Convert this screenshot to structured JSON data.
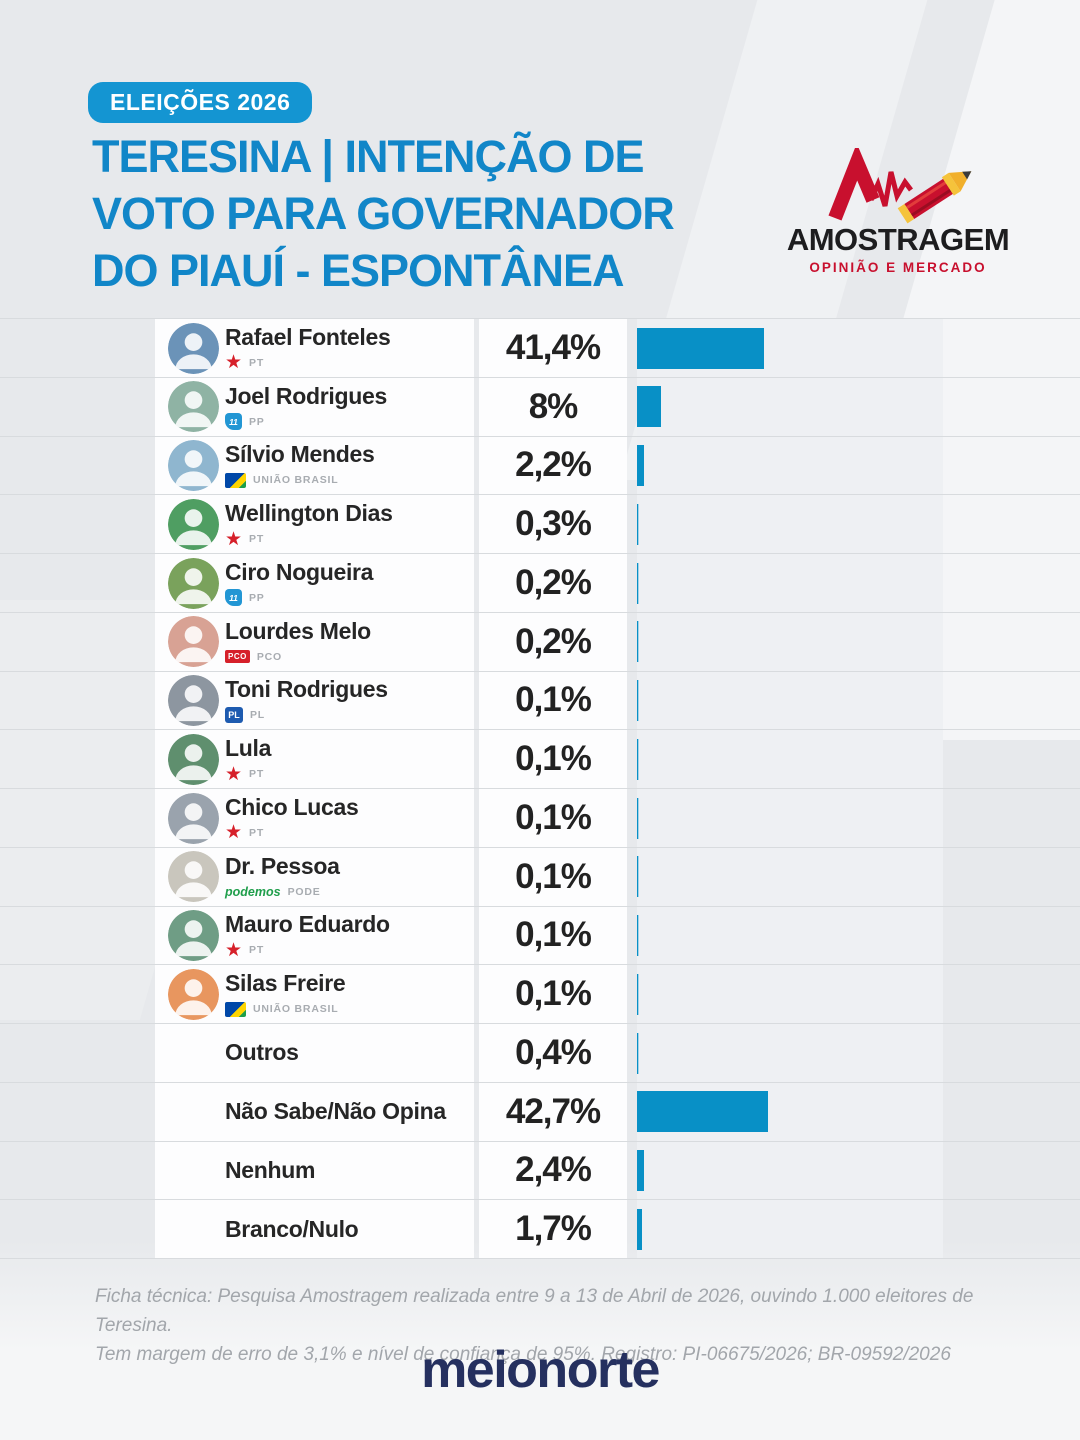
{
  "header": {
    "badge": "ELEIÇÕES 2026",
    "title": {
      "line1": "TERESINA | INTENÇÃO DE",
      "line2": "VOTO PARA GOVERNADOR",
      "line3": "DO PIAUÍ - ESPONTÂNEA"
    },
    "agency_logo": {
      "name": "AMOSTRAGEM",
      "tagline": "OPINIÃO E MERCADO",
      "icon": "pencil-pulse-icon"
    }
  },
  "table": {
    "rows": [
      {
        "name": "Rafael Fonteles",
        "party_label": "PT",
        "party_logo": "pt",
        "value": 41.4,
        "value_label": "41,4%",
        "has_photo": true,
        "avatar_color": "#6b93b8"
      },
      {
        "name": "Joel Rodrigues",
        "party_label": "PP",
        "party_logo": "pp",
        "value": 8,
        "value_label": "8%",
        "has_photo": true,
        "avatar_color": "#8fb3a4"
      },
      {
        "name": "Sílvio Mendes",
        "party_label": "UNIÃO BRASIL",
        "party_logo": "uniao",
        "value": 2.2,
        "value_label": "2,2%",
        "has_photo": true,
        "avatar_color": "#8fb6cf"
      },
      {
        "name": "Wellington Dias",
        "party_label": "PT",
        "party_logo": "pt",
        "value": 0.3,
        "value_label": "0,3%",
        "has_photo": true,
        "avatar_color": "#4f9e62"
      },
      {
        "name": "Ciro Nogueira",
        "party_label": "PP",
        "party_logo": "pp",
        "value": 0.2,
        "value_label": "0,2%",
        "has_photo": true,
        "avatar_color": "#7aa25c"
      },
      {
        "name": "Lourdes Melo",
        "party_label": "PCO",
        "party_logo": "pco",
        "value": 0.2,
        "value_label": "0,2%",
        "has_photo": true,
        "avatar_color": "#d8a294"
      },
      {
        "name": "Toni Rodrigues",
        "party_label": "PL",
        "party_logo": "pl",
        "value": 0.1,
        "value_label": "0,1%",
        "has_photo": true,
        "avatar_color": "#8d96a0"
      },
      {
        "name": "Lula",
        "party_label": "PT",
        "party_logo": "pt",
        "value": 0.1,
        "value_label": "0,1%",
        "has_photo": true,
        "avatar_color": "#5f8f6e"
      },
      {
        "name": "Chico Lucas",
        "party_label": "PT",
        "party_logo": "pt",
        "value": 0.1,
        "value_label": "0,1%",
        "has_photo": true,
        "avatar_color": "#9aa3ad"
      },
      {
        "name": "Dr. Pessoa",
        "party_label": "PODE",
        "party_logo": "podemos",
        "value": 0.1,
        "value_label": "0,1%",
        "has_photo": true,
        "avatar_color": "#c9c6bd"
      },
      {
        "name": "Mauro Eduardo",
        "party_label": "PT",
        "party_logo": "pt",
        "value": 0.1,
        "value_label": "0,1%",
        "has_photo": true,
        "avatar_color": "#6f9d85"
      },
      {
        "name": "Silas Freire",
        "party_label": "UNIÃO BRASIL",
        "party_logo": "uniao",
        "value": 0.1,
        "value_label": "0,1%",
        "has_photo": true,
        "avatar_color": "#e8965f"
      },
      {
        "name": "Outros",
        "party_label": null,
        "party_logo": null,
        "value": 0.4,
        "value_label": "0,4%",
        "has_photo": false,
        "avatar_color": null
      },
      {
        "name": "Não Sabe/Não Opina",
        "party_label": null,
        "party_logo": null,
        "value": 42.7,
        "value_label": "42,7%",
        "has_photo": false,
        "avatar_color": null
      },
      {
        "name": "Nenhum",
        "party_label": null,
        "party_logo": null,
        "value": 2.4,
        "value_label": "2,4%",
        "has_photo": false,
        "avatar_color": null
      },
      {
        "name": "Branco/Nulo",
        "party_label": null,
        "party_logo": null,
        "value": 1.7,
        "value_label": "1,7%",
        "has_photo": false,
        "avatar_color": null
      }
    ]
  },
  "chart_data": {
    "type": "bar",
    "orientation": "horizontal",
    "title": "TERESINA | INTENÇÃO DE VOTO PARA GOVERNADOR DO PIAUÍ - ESPONTÂNEA",
    "categories": [
      "Rafael Fonteles",
      "Joel Rodrigues",
      "Sílvio Mendes",
      "Wellington Dias",
      "Ciro Nogueira",
      "Lourdes Melo",
      "Toni Rodrigues",
      "Lula",
      "Chico Lucas",
      "Dr. Pessoa",
      "Mauro Eduardo",
      "Silas Freire",
      "Outros",
      "Não Sabe/Não Opina",
      "Nenhum",
      "Branco/Nulo"
    ],
    "values": [
      41.4,
      8,
      2.2,
      0.3,
      0.2,
      0.2,
      0.1,
      0.1,
      0.1,
      0.1,
      0.1,
      0.1,
      0.4,
      42.7,
      2.4,
      1.7
    ],
    "value_labels": [
      "41,4%",
      "8%",
      "2,2%",
      "0,3%",
      "0,2%",
      "0,2%",
      "0,1%",
      "0,1%",
      "0,1%",
      "0,1%",
      "0,1%",
      "0,1%",
      "0,4%",
      "42,7%",
      "2,4%",
      "1,7%"
    ],
    "parties": [
      "PT",
      "PP",
      "UNIÃO BRASIL",
      "PT",
      "PP",
      "PCO",
      "PL",
      "PT",
      "PT",
      "PODE",
      "PT",
      "UNIÃO BRASIL",
      null,
      null,
      null,
      null
    ],
    "xlabel": "",
    "ylabel": "",
    "xlim": [
      0,
      100
    ],
    "grid": false,
    "legend": false,
    "bar_color": "#0890c6"
  },
  "footer": {
    "line1": "Ficha técnica: Pesquisa Amostragem realizada entre 9 a 13 de Abril de 2026, ouvindo 1.000 eleitores de Teresina.",
    "line2": "Tem margem de erro de 3,1% e nível de confiança de 95%. Registro: PI-06675/2026; BR-09592/2026"
  },
  "brand": {
    "name": "meionorte"
  },
  "colors": {
    "page_bg": "#e7e9ec",
    "title_blue": "#1186c8",
    "badge_blue": "#1495d2",
    "bar_blue": "#0890c6",
    "bar_track": "#eef0f3",
    "axis_light_blue": "#a3d2e8",
    "logo_red": "#c8102e",
    "brand_navy": "#25305f"
  }
}
